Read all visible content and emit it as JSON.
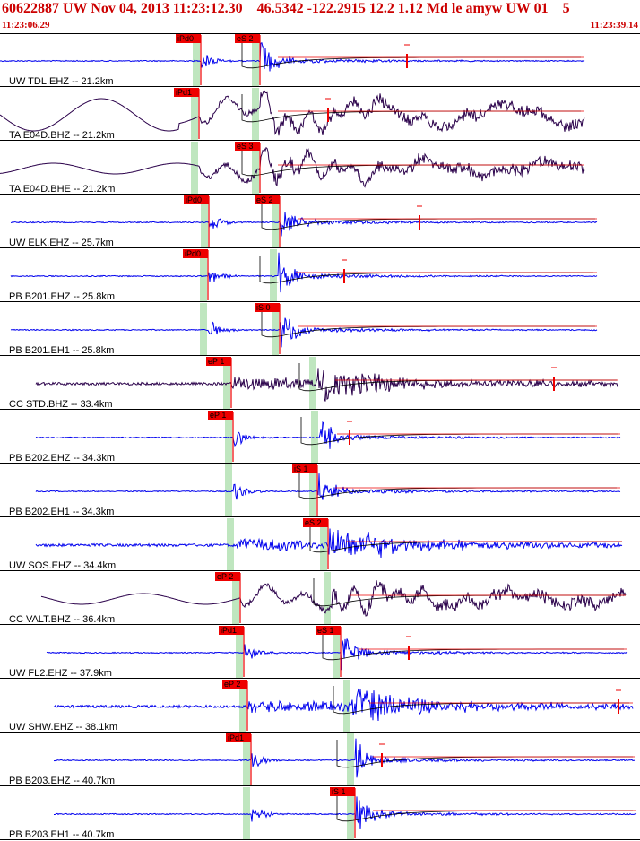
{
  "header": {
    "title": "60622887 UW Nov 04, 2013 11:23:12.30    46.5342 -122.2915 12.2 1.12 Md le amyw UW 01    5",
    "time_start": "11:23:06.29",
    "time_end": "11:23:39.14"
  },
  "colors": {
    "trace_blue": "#0000ee",
    "trace_dark": "#2a004a",
    "pick_red": "#ee0000",
    "window_green": "#bfe6bf",
    "header_red": "#cc0000",
    "separator": "#000000"
  },
  "channels": [
    {
      "label": "UW TDL.EHZ -- 21.2km",
      "color": "blue",
      "style": "spike",
      "p_pick": "iPd0",
      "s_pick": "eS 2",
      "p_time": 224,
      "s_time": 290,
      "trace_start": 0,
      "trace_end": 652,
      "coda_end": 454
    },
    {
      "label": "TA E04D.BHZ -- 21.2km",
      "color": "dark",
      "style": "long",
      "p_pick": "iPd1",
      "s_pick": "",
      "p_time": 222,
      "s_time": 290,
      "trace_start": 0,
      "trace_end": 652,
      "coda_end": 366
    },
    {
      "label": "TA E04D.BHE -- 21.2km",
      "color": "dark",
      "style": "long",
      "p_pick": "",
      "s_pick": "eS 3",
      "p_time": 222,
      "s_time": 290,
      "trace_start": 0,
      "trace_end": 652,
      "coda_end": 0
    },
    {
      "label": "UW ELK.EHZ -- 25.7km",
      "color": "blue",
      "style": "spike",
      "p_pick": "iPd0",
      "s_pick": "eS 2",
      "p_time": 233,
      "s_time": 312,
      "trace_start": 12,
      "trace_end": 666,
      "coda_end": 468
    },
    {
      "label": "PB B201.EHZ -- 25.8km",
      "color": "blue",
      "style": "spike",
      "p_pick": "iPd0",
      "s_pick": "",
      "p_time": 232,
      "s_time": 310,
      "trace_start": 12,
      "trace_end": 666,
      "coda_end": 384
    },
    {
      "label": "PB B201.EH1 -- 25.8km",
      "color": "blue",
      "style": "spike",
      "p_pick": "",
      "s_pick": "iS 0",
      "p_time": 232,
      "s_time": 312,
      "trace_start": 12,
      "trace_end": 666,
      "coda_end": 0
    },
    {
      "label": "CC STD.BHZ -- 33.4km",
      "color": "dark",
      "style": "noisy",
      "p_pick": "eP 1",
      "s_pick": "",
      "p_time": 258,
      "s_time": 354,
      "trace_start": 40,
      "trace_end": 690,
      "coda_end": 618
    },
    {
      "label": "PB B202.EHZ -- 34.3km",
      "color": "blue",
      "style": "spike",
      "p_pick": "eP 1",
      "s_pick": "",
      "p_time": 260,
      "s_time": 356,
      "trace_start": 40,
      "trace_end": 692,
      "coda_end": 390
    },
    {
      "label": "PB B202.EH1 -- 34.3km",
      "color": "blue",
      "style": "spike",
      "p_pick": "",
      "s_pick": "iS 1",
      "p_time": 260,
      "s_time": 354,
      "trace_start": 40,
      "trace_end": 692,
      "coda_end": 0
    },
    {
      "label": "UW SOS.EHZ -- 34.4km",
      "color": "blue",
      "style": "noisy",
      "p_pick": "",
      "s_pick": "eS 2",
      "p_time": 262,
      "s_time": 366,
      "trace_start": 40,
      "trace_end": 694,
      "coda_end": 0
    },
    {
      "label": "CC VALT.BHZ -- 36.4km",
      "color": "dark",
      "style": "long",
      "p_pick": "eP 2",
      "s_pick": "",
      "p_time": 268,
      "s_time": 370,
      "trace_start": 46,
      "trace_end": 698,
      "coda_end": 0
    },
    {
      "label": "UW FL2.EHZ -- 37.9km",
      "color": "blue",
      "style": "spike",
      "p_pick": "iPd1",
      "s_pick": "eS 1",
      "p_time": 272,
      "s_time": 380,
      "trace_start": 52,
      "trace_end": 700,
      "coda_end": 456
    },
    {
      "label": "UW SHW.EHZ -- 38.1km",
      "color": "blue",
      "style": "noisy",
      "p_pick": "eP 2",
      "s_pick": "",
      "p_time": 276,
      "s_time": 392,
      "trace_start": 60,
      "trace_end": 706,
      "coda_end": 690
    },
    {
      "label": "PB B203.EHZ -- 40.7km",
      "color": "blue",
      "style": "spike",
      "p_pick": "iPd1",
      "s_pick": "",
      "p_time": 280,
      "s_time": 396,
      "trace_start": 60,
      "trace_end": 708,
      "coda_end": 426
    },
    {
      "label": "PB B203.EH1 -- 40.7km",
      "color": "blue",
      "style": "spike",
      "p_pick": "",
      "s_pick": "iS 1",
      "p_time": 280,
      "s_time": 396,
      "trace_start": 60,
      "trace_end": 710,
      "coda_end": 0
    }
  ]
}
